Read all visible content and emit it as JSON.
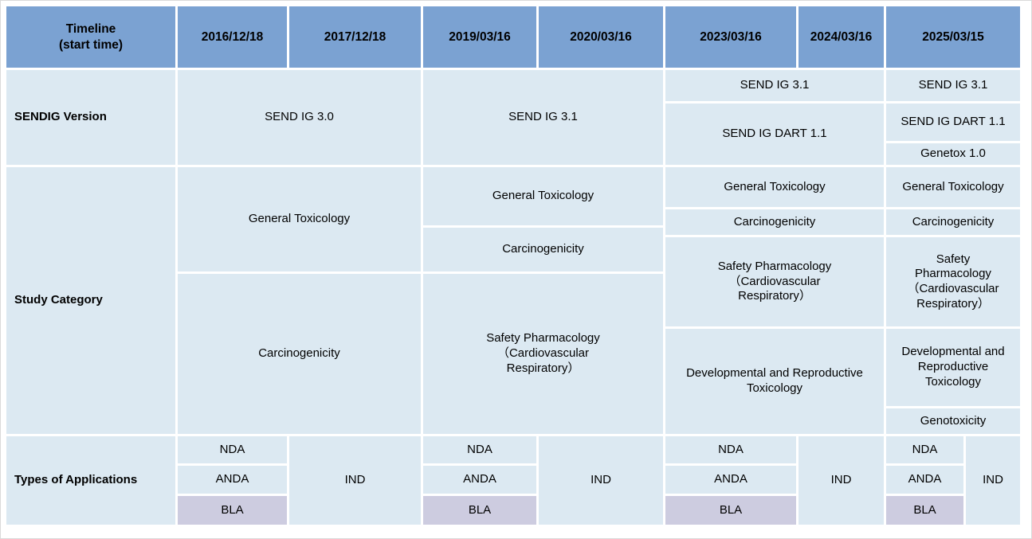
{
  "header": {
    "timeline_label": "Timeline\n(start time)",
    "dates": [
      "2016/12/18",
      "2017/12/18",
      "2019/03/16",
      "2020/03/16",
      "2023/03/16",
      "2024/03/16",
      "2025/03/15"
    ]
  },
  "version": {
    "label": "SENDIG Version",
    "c2016_2017": "SEND IG 3.0",
    "c2019_2020": "SEND IG 3.1",
    "c2023_2024_row1": "SEND IG 3.1",
    "c2023_2024_row2": "SEND IG DART 1.1",
    "c2025_row1": "SEND IG 3.1",
    "c2025_row2": "SEND IG DART 1.1",
    "c2025_row3": "Genetox 1.0"
  },
  "study": {
    "label": "Study Category",
    "g1_general": "General Toxicology",
    "g1_carcino": "Carcinogenicity",
    "g2_general": "General Toxicology",
    "g2_carcino": "Carcinogenicity",
    "g2_safety": "Safety Pharmacology\n（Cardiovascular\nRespiratory）",
    "g3_general": "General Toxicology",
    "g3_carcino": "Carcinogenicity",
    "g3_safety": "Safety Pharmacology\n（Cardiovascular\nRespiratory）",
    "g3_dart": "Developmental and Reproductive\nToxicology",
    "g4_general": "General Toxicology",
    "g4_carcino": "Carcinogenicity",
    "g4_safety": "Safety\nPharmacology\n（Cardiovascular\nRespiratory）",
    "g4_dart": "Developmental and\nReproductive\nToxicology",
    "g4_genotox": "Genotoxicity"
  },
  "applications": {
    "label": "Types of Applications",
    "col_2016": [
      "NDA",
      "ANDA",
      "BLA"
    ],
    "col_2017": [
      "IND"
    ],
    "col_2019": [
      "NDA",
      "ANDA",
      "BLA"
    ],
    "col_2020": [
      "IND"
    ],
    "col_2023": [
      "NDA",
      "ANDA",
      "BLA"
    ],
    "col_2024": [
      "IND"
    ],
    "col_2025_left": [
      "NDA",
      "ANDA",
      "BLA"
    ],
    "col_2025_right": [
      "IND"
    ]
  },
  "colors": {
    "header_bg": "#7ba2d2",
    "cell_bg": "#dce9f2",
    "bla_bg": "#cdcce0",
    "grid_line": "#ffffff",
    "text": "#000000"
  }
}
